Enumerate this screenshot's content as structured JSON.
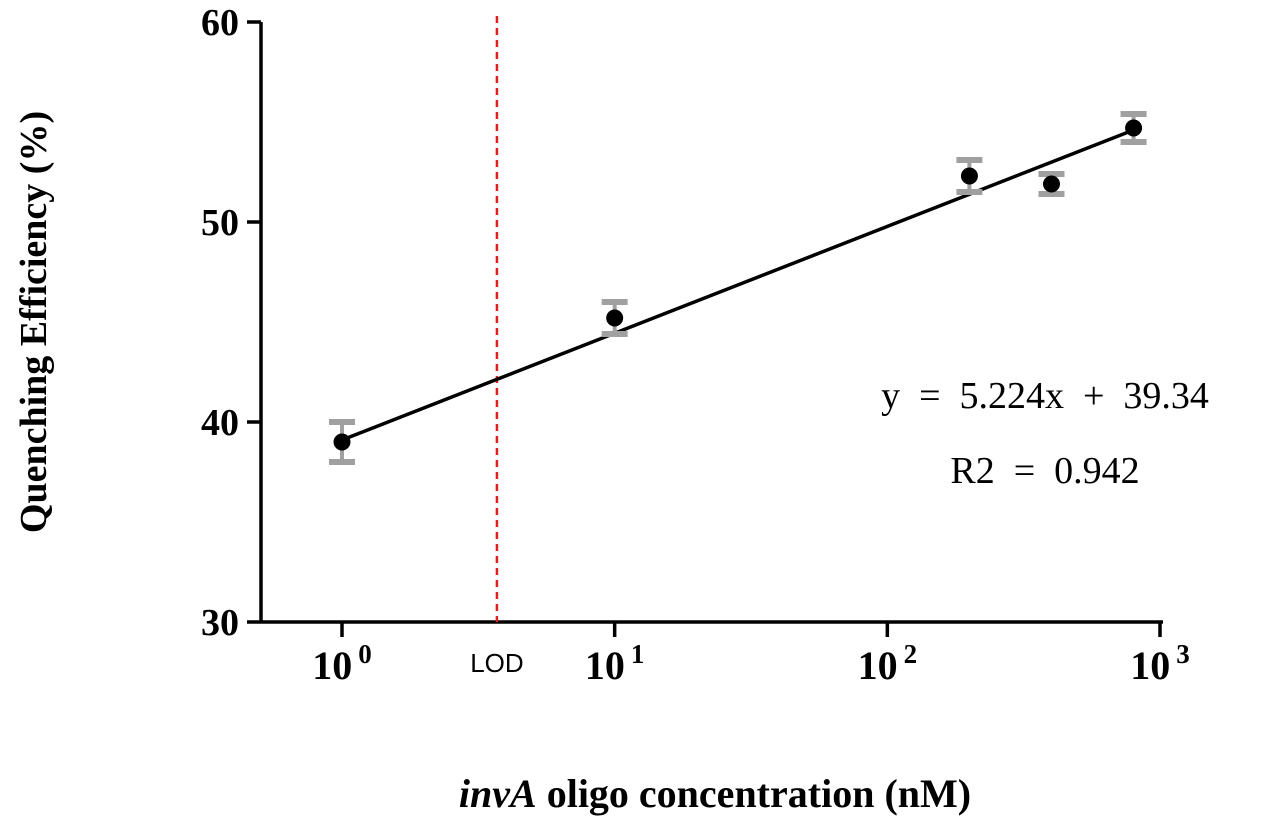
{
  "chart_data": {
    "type": "scatter",
    "title": "",
    "xlabel_italic": "invA",
    "xlabel_rest": " oligo concentration (nM)",
    "ylabel": "Quenching Efficiency (%)",
    "xscale": "log",
    "xlim": [
      0.5,
      1000
    ],
    "ylim": [
      30,
      60
    ],
    "yticks": [
      30,
      40,
      50,
      60
    ],
    "xticks": [
      {
        "value": 1,
        "base": "10",
        "exp": "0"
      },
      {
        "value": 10,
        "base": "10",
        "exp": "1"
      },
      {
        "value": 100,
        "base": "10",
        "exp": "2"
      },
      {
        "value": 1000,
        "base": "10",
        "exp": "3"
      }
    ],
    "points": [
      {
        "x": 1,
        "y": 39.0,
        "err": 1.0
      },
      {
        "x": 10,
        "y": 45.2,
        "err": 0.8
      },
      {
        "x": 200,
        "y": 52.3,
        "err": 0.8
      },
      {
        "x": 400,
        "y": 51.9,
        "err": 0.5
      },
      {
        "x": 800,
        "y": 54.7,
        "err": 0.7
      }
    ],
    "fit": {
      "x_start": 1,
      "y_start": 39.1,
      "x_end": 800,
      "y_end": 54.6
    },
    "lod": {
      "x": 3.7,
      "label": "LOD",
      "color": "#e02020"
    },
    "annotations": {
      "equation": "y  =  5.224x  +  39.34",
      "r2": "R2  =  0.942"
    },
    "grid": false,
    "colors": {
      "points": "#000000",
      "errorbars": "#a0a0a0",
      "fit": "#000000"
    }
  }
}
